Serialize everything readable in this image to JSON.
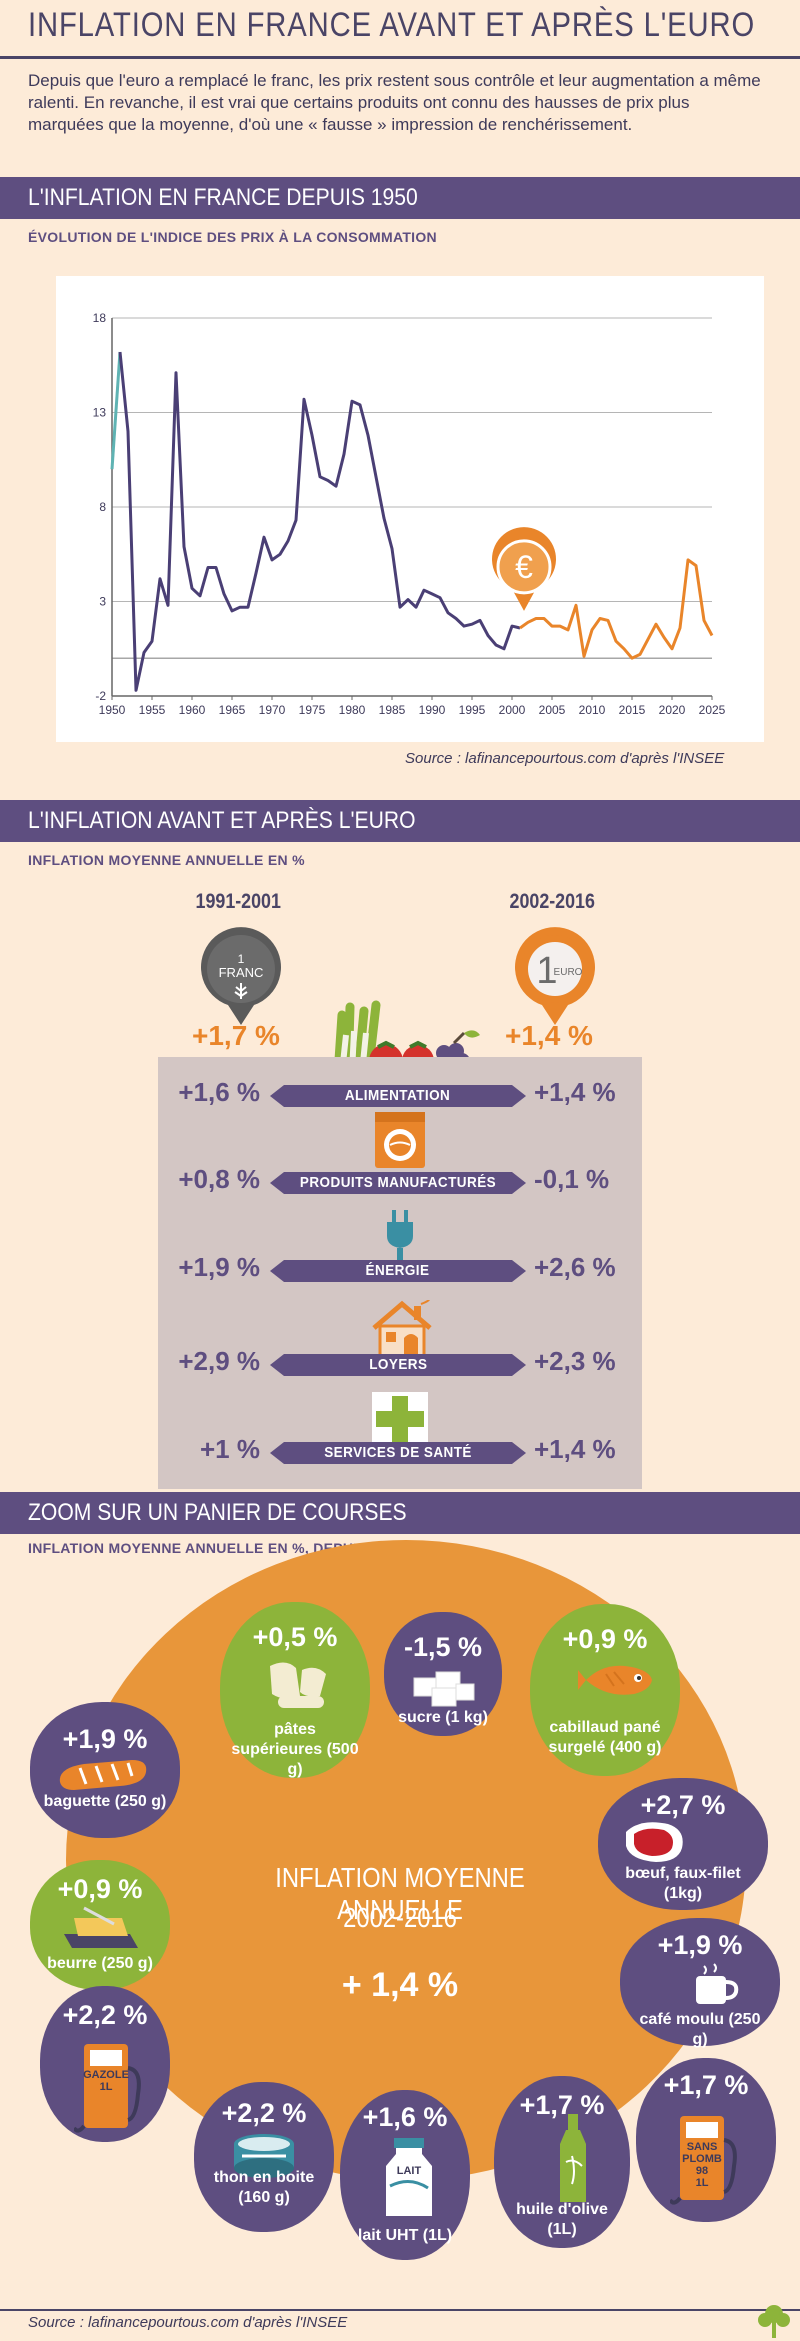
{
  "header": {
    "title": "INFLATION EN FRANCE AVANT ET APRÈS L'EURO",
    "intro": "Depuis que l'euro a remplacé le franc, les prix restent sous contrôle et leur augmentation a même ralenti. En revanche, il est vrai que certains produits ont connu des hausses de prix plus marquées que la moyenne, d'où une « fausse » impression de renchérissement."
  },
  "section1": {
    "band": "L'INFLATION EN FRANCE DEPUIS 1950",
    "subtitle": "ÉVOLUTION DE L'INDICE DES PRIX À LA CONSOMMATION",
    "source": "Source : lafinancepourtous.com d'après l'INSEE",
    "euro_symbol": "€"
  },
  "chart_data": {
    "type": "line",
    "title": "ÉVOLUTION DE L'INDICE DES PRIX À LA CONSOMMATION",
    "xlabel": "",
    "ylabel": "",
    "xlim": [
      1950,
      2025
    ],
    "ylim": [
      -2,
      18
    ],
    "yticks": [
      -2,
      3,
      8,
      13,
      18
    ],
    "xticks": [
      1950,
      1955,
      1960,
      1965,
      1970,
      1975,
      1980,
      1985,
      1990,
      1995,
      2000,
      2005,
      2010,
      2015,
      2020,
      2025
    ],
    "grid": true,
    "series": [
      {
        "color": "#5fb3b3",
        "points": [
          [
            1950,
            10.0
          ],
          [
            1951,
            16.2
          ]
        ]
      },
      {
        "color": "#4a3f75",
        "points": [
          [
            1951,
            16.2
          ],
          [
            1952,
            12.0
          ],
          [
            1953,
            -1.7
          ],
          [
            1954,
            0.3
          ],
          [
            1955,
            0.9
          ],
          [
            1956,
            4.2
          ],
          [
            1957,
            2.8
          ],
          [
            1958,
            15.1
          ],
          [
            1959,
            5.9
          ],
          [
            1960,
            3.7
          ],
          [
            1961,
            3.3
          ],
          [
            1962,
            4.8
          ],
          [
            1963,
            4.8
          ],
          [
            1964,
            3.4
          ],
          [
            1965,
            2.5
          ],
          [
            1966,
            2.7
          ],
          [
            1967,
            2.7
          ],
          [
            1968,
            4.5
          ],
          [
            1969,
            6.4
          ],
          [
            1970,
            5.2
          ],
          [
            1971,
            5.5
          ],
          [
            1972,
            6.2
          ],
          [
            1973,
            7.3
          ],
          [
            1974,
            13.7
          ],
          [
            1975,
            11.8
          ],
          [
            1976,
            9.6
          ],
          [
            1977,
            9.4
          ],
          [
            1978,
            9.1
          ],
          [
            1979,
            10.8
          ],
          [
            1980,
            13.6
          ],
          [
            1981,
            13.4
          ],
          [
            1982,
            11.8
          ],
          [
            1983,
            9.6
          ],
          [
            1984,
            7.4
          ],
          [
            1985,
            5.8
          ],
          [
            1986,
            2.7
          ],
          [
            1987,
            3.1
          ],
          [
            1988,
            2.7
          ],
          [
            1989,
            3.6
          ],
          [
            1990,
            3.4
          ],
          [
            1991,
            3.2
          ],
          [
            1992,
            2.4
          ],
          [
            1993,
            2.1
          ],
          [
            1994,
            1.7
          ],
          [
            1995,
            1.8
          ],
          [
            1996,
            2.0
          ],
          [
            1997,
            1.2
          ],
          [
            1998,
            0.7
          ],
          [
            1999,
            0.5
          ],
          [
            2000,
            1.7
          ],
          [
            2001,
            1.6
          ]
        ]
      },
      {
        "color": "#e9852a",
        "points": [
          [
            2001,
            1.6
          ],
          [
            2002,
            1.9
          ],
          [
            2003,
            2.1
          ],
          [
            2004,
            2.1
          ],
          [
            2005,
            1.7
          ],
          [
            2006,
            1.7
          ],
          [
            2007,
            1.5
          ],
          [
            2008,
            2.8
          ],
          [
            2009,
            0.1
          ],
          [
            2010,
            1.5
          ],
          [
            2011,
            2.1
          ],
          [
            2012,
            2.0
          ],
          [
            2013,
            0.9
          ],
          [
            2014,
            0.5
          ],
          [
            2015,
            0.0
          ],
          [
            2016,
            0.2
          ],
          [
            2017,
            1.0
          ],
          [
            2018,
            1.8
          ],
          [
            2019,
            1.1
          ],
          [
            2020,
            0.5
          ],
          [
            2021,
            1.6
          ],
          [
            2022,
            5.2
          ],
          [
            2023,
            4.9
          ],
          [
            2024,
            2.0
          ],
          [
            2025,
            1.2
          ]
        ]
      }
    ]
  },
  "section2": {
    "band": "L'INFLATION AVANT ET APRÈS L'EURO",
    "subtitle": "INFLATION MOYENNE ANNUELLE EN %",
    "era_left": "1991-2001",
    "era_right": "2002-2016",
    "franc_pin": "1\nFRANC",
    "euro_pin_number": "1",
    "euro_pin_word": "EURO",
    "total_left": "+1,7 %",
    "total_right": "+1,4 %",
    "rows": [
      {
        "label": "ALIMENTATION",
        "left": "+1,6 %",
        "right": "+1,4 %"
      },
      {
        "label": "PRODUITS MANUFACTURÉS",
        "left": "+0,8 %",
        "right": "-0,1 %"
      },
      {
        "label": "ÉNERGIE",
        "left": "+1,9 %",
        "right": "+2,6 %"
      },
      {
        "label": "LOYERS",
        "left": "+2,9 %",
        "right": "+2,3 %"
      },
      {
        "label": "SERVICES DE SANTÉ",
        "left": "+1 %",
        "right": "+1,4 %"
      }
    ]
  },
  "section3": {
    "band": "ZOOM SUR UN PANIER DE COURSES",
    "subtitle": "INFLATION MOYENNE ANNUELLE EN %, DEPUIS 2002",
    "center_title_1": "INFLATION MOYENNE ANNUELLE",
    "center_title_2": "2002-2016",
    "center_value": "+ 1,4 %",
    "items": [
      {
        "pct": "+1,9 %",
        "label": "baguette (250 g)",
        "color": "purple",
        "icon": "baguette-icon"
      },
      {
        "pct": "+0,5 %",
        "label": "pâtes supérieures (500 g)",
        "color": "green",
        "icon": "pasta-icon"
      },
      {
        "pct": "-1,5 %",
        "label": "sucre (1 kg)",
        "color": "purple",
        "icon": "sugar-icon"
      },
      {
        "pct": "+0,9 %",
        "label": "cabillaud pané surgelé (400 g)",
        "color": "green",
        "icon": "fish-icon"
      },
      {
        "pct": "+2,7 %",
        "label": "bœuf, faux-filet (1kg)",
        "color": "purple",
        "icon": "beef-icon"
      },
      {
        "pct": "+0,9 %",
        "label": "beurre (250 g)",
        "color": "green",
        "icon": "butter-icon"
      },
      {
        "pct": "+1,9 %",
        "label": "café moulu (250 g)",
        "color": "purple",
        "icon": "coffee-icon"
      },
      {
        "pct": "+2,2 %",
        "label": "",
        "color": "purple",
        "icon": "fuel-pump-icon",
        "pump_text": "GAZOLE\n1L"
      },
      {
        "pct": "+2,2 %",
        "label": "thon en boite (160 g)",
        "color": "purple",
        "icon": "tuna-can-icon"
      },
      {
        "pct": "+1,6 %",
        "label": "lait UHT (1L)",
        "color": "purple",
        "icon": "milk-icon",
        "pump_text": "LAIT"
      },
      {
        "pct": "+1,7 %",
        "label": "huile d'olive (1L)",
        "color": "purple",
        "icon": "olive-oil-icon"
      },
      {
        "pct": "+1,7 %",
        "label": "",
        "color": "purple",
        "icon": "fuel-pump-icon",
        "pump_text": "SANS\nPLOMB\n98\n1L"
      }
    ]
  },
  "footer": {
    "source": "Source : lafinancepourtous.com d'après l'INSEE"
  },
  "colors": {
    "purple": "#5e4e80",
    "orange": "#e9852a",
    "green": "#8db43a",
    "background": "#fdebd8",
    "panel": "#d3c6c4"
  }
}
